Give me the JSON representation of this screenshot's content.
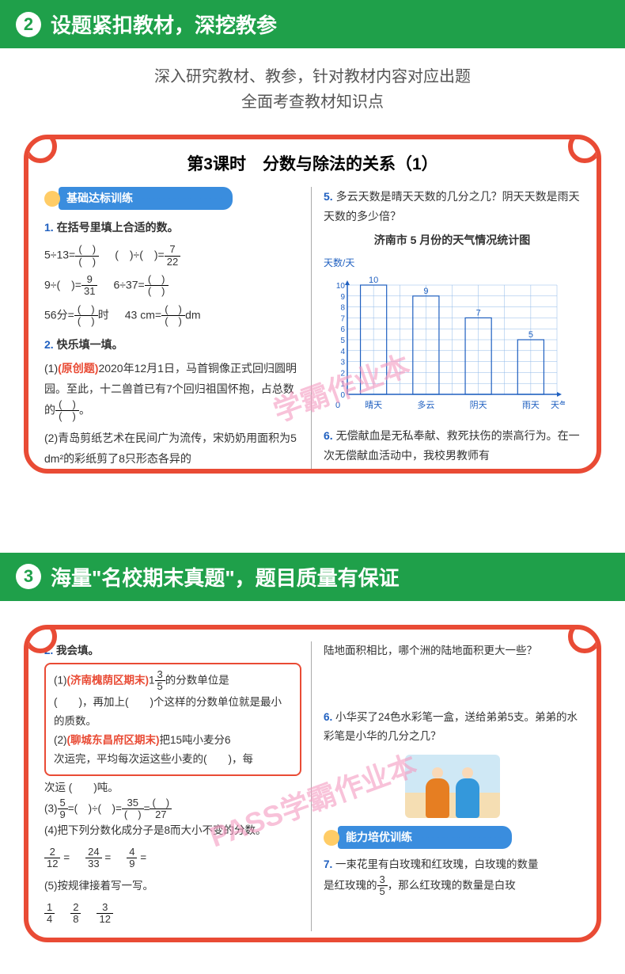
{
  "header2": {
    "num": "2",
    "title": "设题紧扣教材，深挖教参"
  },
  "sub2_line1": "深入研究教材、教参，针对教材内容对应出题",
  "sub2_line2": "全面考查教材知识点",
  "lesson": {
    "title": "第3课时　分数与除法的关系（1）"
  },
  "badge1": "基础达标训练",
  "q1": {
    "num": "1.",
    "title": "在括号里填上合适的数。"
  },
  "q1_items": {
    "a": "5÷13=",
    "b1": "(　)÷(　)=",
    "b_frac_n": "7",
    "b_frac_d": "22",
    "c": "9÷(　)=",
    "c_frac_n": "9",
    "c_frac_d": "31",
    "d": "6÷37=",
    "e_pre": "56分=",
    "e_post": "时",
    "f_pre": "43 cm=",
    "f_post": "dm"
  },
  "q2": {
    "num": "2.",
    "title": "快乐填一填。"
  },
  "q2_1": "(1)(原创题)2020年12月1日，马首铜像正式回归圆明园。至此，十二兽首已有7个回归祖国怀抱，占总数的",
  "q2_2": "(2)青岛剪纸艺术在民间广为流传，宋奶奶用面积为5 dm²的彩纸剪了8只形态各异的",
  "q5": {
    "num": "5.",
    "text": "多云天数是晴天天数的几分之几？阴天天数是雨天天数的多少倍？"
  },
  "chart": {
    "title": "济南市 5 月份的天气情况统计图",
    "ylabel": "天数/天",
    "xlabel": "天气",
    "categories": [
      "晴天",
      "多云",
      "阴天",
      "雨天"
    ],
    "values": [
      10,
      9,
      7,
      5
    ],
    "ylim": [
      0,
      10
    ],
    "ytick_step": 1,
    "bar_color": "none",
    "bar_border": "#2060c0",
    "grid_color": "#8fb8e8",
    "axis_color": "#2060c0",
    "label_color": "#2060c0",
    "font_size": 12
  },
  "q6a": {
    "num": "6.",
    "text": "无偿献血是无私奉献、救死扶伤的崇高行为。在一次无偿献血活动中，我校男教师有"
  },
  "watermark": "学霸作业本",
  "header3": {
    "num": "3",
    "title": "海量\"名校期末真题\"，题目质量有保证"
  },
  "s2_q2": {
    "num": "2.",
    "title": "我会填。"
  },
  "s2_top_right": "陆地面积相比，哪个洲的陆地面积更大一些？",
  "s2_1a": "(1)(济南槐荫区期末)",
  "s2_1_fn": "3",
  "s2_1_fd": "5",
  "s2_1b": "的分数单位是",
  "s2_1c": "(　　)，再加上(　　)个这样的分数单位就是最小的质数。",
  "s2_2a": "(2)(聊城东昌府区期末)把15吨小麦分6",
  "s2_2b": "次运完，平均每次运这些小麦的(　　)，每",
  "s2_2c": "次运 (　　)吨。",
  "s2_3": "(3)",
  "s2_3_fn": "5",
  "s2_3_fd": "9",
  "s2_3_mid": "=(　)÷(　)=",
  "s2_3_f2n": "35",
  "s2_3_f2d": "(　)",
  "s2_3_eq2": "=",
  "s2_3_f3n": "(　)",
  "s2_3_f3d": "27",
  "s2_4": "(4)把下列分数化成分子是8而大小不变的分数。",
  "s2_4_items": [
    {
      "n": "2",
      "d": "12"
    },
    {
      "n": "24",
      "d": "33"
    },
    {
      "n": "4",
      "d": "9"
    }
  ],
  "s2_5": "(5)按规律接着写一写。",
  "s2_5_items": [
    {
      "n": "1",
      "d": "4"
    },
    {
      "n": "2",
      "d": "8"
    },
    {
      "n": "3",
      "d": "12"
    }
  ],
  "s2_q6": {
    "num": "6.",
    "text": "小华买了24色水彩笔一盒，送给弟弟5支。弟弟的水彩笔是小华的几分之几？"
  },
  "badge2": "能力培优训练",
  "s2_q7": {
    "num": "7.",
    "text_a": "一束花里有白玫瑰和红玫瑰，白玫瑰的数量",
    "text_b": "是红玫瑰的",
    "fn": "3",
    "fd": "5",
    "text_c": "，那么红玫瑰的数量是白玫"
  },
  "watermark2": "PASS学霸作业本"
}
